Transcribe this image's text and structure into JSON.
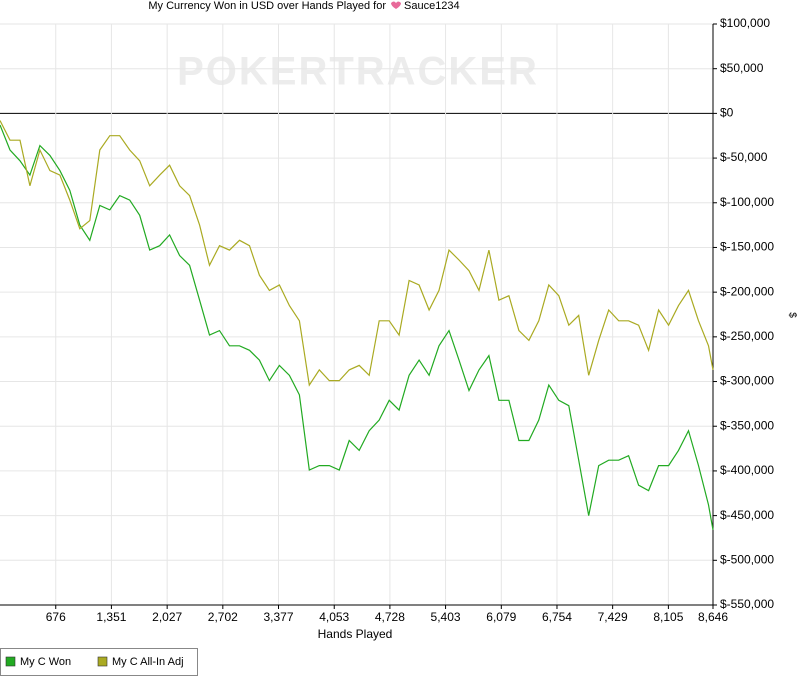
{
  "chart_data": {
    "type": "line",
    "title": "My Currency Won in USD over Hands Played for",
    "player": "Sauce1234",
    "watermark": "POKERTRACKER",
    "x_label": "Hands Played",
    "y_label": "$",
    "grid": true,
    "xlim": [
      0,
      8646
    ],
    "ylim": [
      -550000,
      100000
    ],
    "xticks": [
      676,
      {
        "value": 1351,
        "label": "1,351"
      },
      {
        "value": 2027,
        "label": "2,027"
      },
      {
        "value": 2702,
        "label": "2,702"
      },
      {
        "value": 3377,
        "label": "3,377"
      },
      {
        "value": 4053,
        "label": "4,053"
      },
      {
        "value": 4728,
        "label": "4,728"
      },
      {
        "value": 5403,
        "label": "5,403"
      },
      {
        "value": 6079,
        "label": "6,079"
      },
      {
        "value": 6754,
        "label": "6,754"
      },
      {
        "value": 7429,
        "label": "7,429"
      },
      {
        "value": 8105,
        "label": "8,105"
      },
      {
        "value": 8646,
        "label": "8,646"
      }
    ],
    "yticks": [
      {
        "value": 100000,
        "label": "$100,000"
      },
      {
        "value": 50000,
        "label": "$50,000"
      },
      {
        "value": 0,
        "label": "$0"
      },
      {
        "value": -50000,
        "label": "$-50,000"
      },
      {
        "value": -100000,
        "label": "$-100,000"
      },
      {
        "value": -150000,
        "label": "$-150,000"
      },
      {
        "value": -200000,
        "label": "$-200,000"
      },
      {
        "value": -250000,
        "label": "$-250,000"
      },
      {
        "value": -300000,
        "label": "$-300,000"
      },
      {
        "value": -350000,
        "label": "$-350,000"
      },
      {
        "value": -400000,
        "label": "$-400,000"
      },
      {
        "value": -450000,
        "label": "$-450,000"
      },
      {
        "value": -500000,
        "label": "$-500,000"
      },
      {
        "value": -550000,
        "label": "$-550,000"
      }
    ],
    "x": [
      0,
      121,
      242,
      363,
      484,
      605,
      726,
      847,
      968,
      1089,
      1210,
      1331,
      1452,
      1573,
      1694,
      1815,
      1936,
      2057,
      2178,
      2299,
      2420,
      2541,
      2662,
      2783,
      2904,
      3025,
      3146,
      3267,
      3388,
      3509,
      3630,
      3751,
      3872,
      3993,
      4114,
      4235,
      4356,
      4477,
      4598,
      4719,
      4840,
      4961,
      5082,
      5203,
      5324,
      5445,
      5566,
      5687,
      5808,
      5929,
      6050,
      6171,
      6292,
      6413,
      6534,
      6655,
      6776,
      6897,
      7018,
      7139,
      7260,
      7381,
      7502,
      7623,
      7744,
      7865,
      7986,
      8107,
      8228,
      8349,
      8470,
      8591,
      8646
    ],
    "series": [
      {
        "name": "My C Won",
        "color": "#22aa22",
        "values": [
          -13000,
          -41000,
          -53000,
          -69000,
          -36000,
          -47000,
          -64000,
          -86000,
          -125000,
          -142000,
          -103000,
          -108000,
          -92000,
          -97000,
          -114000,
          -153000,
          -148000,
          -136000,
          -159000,
          -170000,
          -209000,
          -248000,
          -243000,
          -260000,
          -260000,
          -265000,
          -276000,
          -299000,
          -282000,
          -293000,
          -315000,
          -399000,
          -394000,
          -394000,
          -399000,
          -366000,
          -377000,
          -355000,
          -343000,
          -321000,
          -332000,
          -293000,
          -276000,
          -293000,
          -260000,
          -243000,
          -276000,
          -310000,
          -287000,
          -271000,
          -321000,
          -321000,
          -366000,
          -366000,
          -343000,
          -304000,
          -321000,
          -327000,
          -388000,
          -450000,
          -394000,
          -388000,
          -388000,
          -383000,
          -416000,
          -422000,
          -394000,
          -394000,
          -377000,
          -355000,
          -394000,
          -438000,
          -466000
        ]
      },
      {
        "name": "My C All-In Adj",
        "color": "#aaaa22",
        "values": [
          -8000,
          -30000,
          -30000,
          -81000,
          -41000,
          -64000,
          -69000,
          -97000,
          -129000,
          -120000,
          -41000,
          -25000,
          -25000,
          -41000,
          -53000,
          -81000,
          -69000,
          -58000,
          -81000,
          -92000,
          -125000,
          -170000,
          -148000,
          -153000,
          -142000,
          -148000,
          -181000,
          -198000,
          -192000,
          -215000,
          -232000,
          -304000,
          -287000,
          -299000,
          -299000,
          -287000,
          -282000,
          -293000,
          -232000,
          -232000,
          -248000,
          -187000,
          -192000,
          -220000,
          -198000,
          -153000,
          -164000,
          -176000,
          -198000,
          -153000,
          -209000,
          -204000,
          -243000,
          -254000,
          -232000,
          -192000,
          -204000,
          -237000,
          -226000,
          -293000,
          -254000,
          -220000,
          -232000,
          -232000,
          -237000,
          -265000,
          -220000,
          -237000,
          -215000,
          -198000,
          -232000,
          -260000,
          -287000
        ]
      }
    ]
  }
}
